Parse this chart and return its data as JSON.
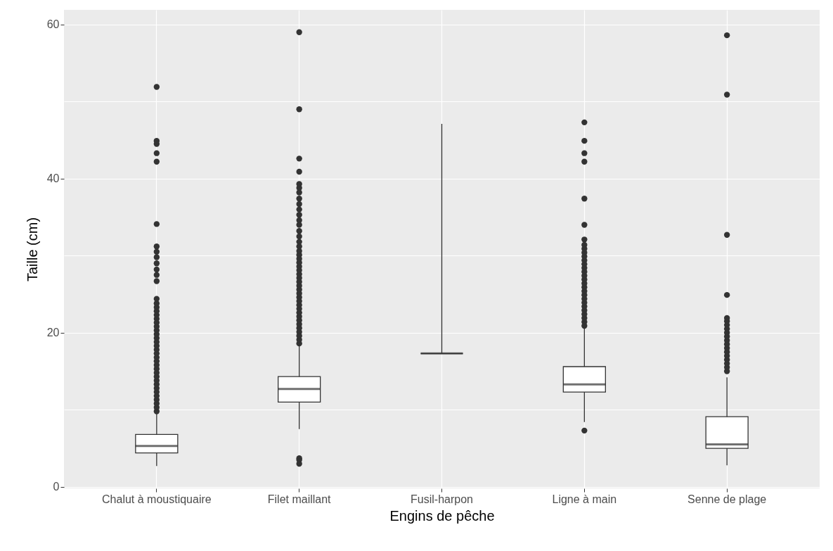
{
  "chart_data": {
    "type": "box",
    "xlabel": "Engins de pêche",
    "ylabel": "Taille (cm)",
    "categories": [
      "Chalut à moustiquaire",
      "Filet maillant",
      "Fusil-harpon",
      "Ligne à main",
      "Senne de plage"
    ],
    "boxes": [
      {
        "low": 2.7,
        "q1": 4.4,
        "median": 5.3,
        "q3": 6.8,
        "high": 9.6,
        "outliers": [
          9.8,
          10.3,
          10.8,
          11.3,
          11.8,
          12.3,
          12.8,
          13.3,
          13.8,
          14.3,
          14.8,
          15.3,
          15.8,
          16.3,
          16.8,
          17.3,
          17.8,
          18.3,
          18.8,
          19.3,
          19.8,
          20.3,
          20.8,
          21.3,
          21.8,
          22.3,
          22.8,
          23.3,
          23.8,
          24.4,
          26.7,
          27.5,
          28.2,
          29.0,
          29.8,
          30.5,
          31.2,
          34.1,
          42.2,
          43.3,
          44.5,
          44.9,
          51.9
        ]
      },
      {
        "low": 7.5,
        "q1": 11.0,
        "median": 12.7,
        "q3": 14.3,
        "high": 18.3,
        "outliers": [
          3.0,
          3.5,
          3.7,
          18.6,
          19.1,
          19.6,
          20.1,
          20.6,
          21.1,
          21.6,
          22.1,
          22.6,
          23.1,
          23.6,
          24.1,
          24.6,
          25.1,
          25.6,
          26.1,
          26.6,
          27.1,
          27.6,
          28.1,
          28.6,
          29.1,
          29.6,
          30.1,
          30.6,
          31.2,
          31.8,
          32.5,
          33.2,
          34.0,
          34.6,
          35.3,
          36.0,
          36.7,
          37.4,
          38.2,
          38.8,
          39.3,
          40.9,
          42.6,
          49.0,
          59.0
        ]
      },
      {
        "low": 17.3,
        "q1": 17.3,
        "median": 17.3,
        "q3": 17.3,
        "high": 47.1
      },
      {
        "low": 8.4,
        "q1": 12.3,
        "median": 13.3,
        "q3": 15.6,
        "high": 20.6,
        "outliers": [
          7.3,
          20.9,
          21.4,
          21.9,
          22.4,
          22.9,
          23.4,
          23.9,
          24.4,
          24.9,
          25.4,
          25.9,
          26.4,
          26.9,
          27.4,
          27.9,
          28.4,
          28.9,
          29.4,
          29.9,
          30.4,
          30.9,
          31.4,
          32.1,
          34.0,
          37.4,
          42.2,
          43.3,
          44.9,
          47.3
        ]
      },
      {
        "low": 2.8,
        "q1": 5.0,
        "median": 5.5,
        "q3": 9.1,
        "high": 14.2,
        "outliers": [
          15.0,
          15.5,
          16.0,
          16.5,
          17.0,
          17.5,
          18.0,
          18.5,
          19.0,
          19.5,
          20.0,
          20.5,
          21.0,
          21.5,
          21.9,
          24.9,
          32.7,
          50.9,
          58.6
        ]
      }
    ],
    "ylim": [
      -0.2,
      61.9
    ],
    "yticks": [
      0,
      {
        "value": 10,
        "label": null
      },
      20,
      {
        "value": 30,
        "label": null
      },
      40,
      {
        "value": 50,
        "label": null
      },
      60
    ],
    "grid": true
  }
}
